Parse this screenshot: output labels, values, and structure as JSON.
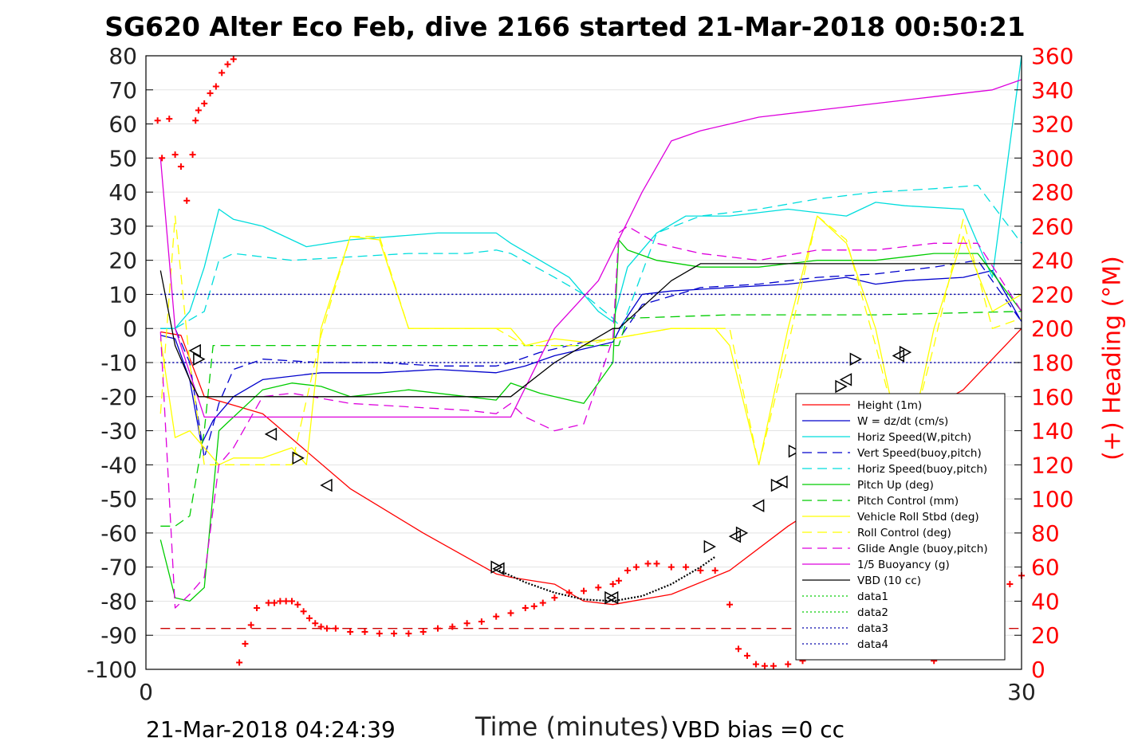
{
  "chart_data": {
    "type": "line",
    "title": "SG620 Alter Eco Feb, dive 2166 started 21-Mar-2018 00:50:21",
    "xlabel": "Time (minutes)",
    "ylabel": "",
    "y2label": "(+) Heading (°M)",
    "xlim": [
      0,
      30
    ],
    "ylim": [
      -100,
      80
    ],
    "y2lim": [
      0,
      360
    ],
    "x_ticks": [
      "0",
      "30"
    ],
    "y_ticks": [
      "80",
      "70",
      "60",
      "50",
      "40",
      "30",
      "20",
      "10",
      "0",
      "-10",
      "-20",
      "-30",
      "-40",
      "-50",
      "-60",
      "-70",
      "-80",
      "-90",
      "-100"
    ],
    "y2_ticks": [
      "360",
      "340",
      "320",
      "300",
      "280",
      "260",
      "240",
      "220",
      "200",
      "180",
      "160",
      "140",
      "120",
      "100",
      "80",
      "60",
      "40",
      "20",
      "0"
    ],
    "grid": "horizontal",
    "legend_position": "lower-right",
    "footer_left": "21-Mar-2018 04:24:39",
    "footer_right": "VBD bias =0 cc",
    "reference_lines": [
      {
        "name": "data4",
        "y": 10,
        "color": "#0000aa",
        "style": "dotted"
      },
      {
        "name": "data3",
        "y": -10,
        "color": "#0000aa",
        "style": "dotted"
      },
      {
        "name": "heading-reference",
        "y": -88,
        "color": "#cc0000",
        "style": "dashed"
      }
    ],
    "series": [
      {
        "name": "Height (1m)",
        "color": "#ff0000",
        "style": "solid",
        "x": [
          0.5,
          1.2,
          2.0,
          4.0,
          7.0,
          9.5,
          12.0,
          12.5,
          14.0,
          15.0,
          16.0,
          18.0,
          20.0,
          22.0,
          24.0,
          25.0,
          26.0,
          28.0,
          29.0,
          30.0
        ],
        "y": [
          -1,
          -2,
          -20,
          -25,
          -47,
          -60,
          -72,
          -73,
          -75,
          -80,
          -81,
          -78,
          -71,
          -58,
          -47,
          -33,
          -28,
          -18,
          -9,
          0
        ]
      },
      {
        "name": "W = dz/dt (cm/s)",
        "color": "#0000cc",
        "style": "solid",
        "x": [
          0.5,
          1.0,
          1.5,
          1.9,
          2.3,
          3.0,
          4.0,
          6.0,
          8.0,
          10.0,
          12.0,
          12.5,
          13.0,
          14.0,
          15.0,
          16.0,
          16.3,
          17.0,
          18.0,
          20.0,
          22.0,
          24.0,
          25.0,
          26.0,
          28.0,
          29.0,
          30.0
        ],
        "y": [
          -2,
          -3,
          -15,
          -34,
          -27,
          -20,
          -15,
          -13,
          -13,
          -12,
          -13,
          -12,
          -11,
          -8,
          -6,
          -4,
          1,
          10,
          11,
          12,
          13,
          15,
          13,
          14,
          15,
          17,
          2
        ]
      },
      {
        "name": "Horiz Speed(W,pitch)",
        "color": "#00dddd",
        "style": "solid",
        "x": [
          0.5,
          1.0,
          1.5,
          2.0,
          2.5,
          3.0,
          4.0,
          5.5,
          7.0,
          8.5,
          10.0,
          12.0,
          12.5,
          13.5,
          14.5,
          15.5,
          16.0,
          16.5,
          17.5,
          18.5,
          20.0,
          22.0,
          24.0,
          25.0,
          26.0,
          28.0,
          29.0,
          30.0
        ],
        "y": [
          0,
          0,
          5,
          18,
          35,
          32,
          30,
          24,
          26,
          27,
          28,
          28,
          25,
          20,
          15,
          5,
          2,
          18,
          28,
          33,
          33,
          35,
          33,
          37,
          36,
          35,
          15,
          80
        ]
      },
      {
        "name": "Vert Speed(buoy,pitch)",
        "color": "#0000cc",
        "style": "dashed",
        "x": [
          0.5,
          1.0,
          1.5,
          2.0,
          2.5,
          3.0,
          4.0,
          6.0,
          8.0,
          10.0,
          12.0,
          12.5,
          13.5,
          15.0,
          16.0,
          16.3,
          17.0,
          19.0,
          21.0,
          23.0,
          25.0,
          27.0,
          28.5,
          30.0
        ],
        "y": [
          0,
          0,
          -10,
          -38,
          -22,
          -12,
          -9,
          -10,
          -10,
          -11,
          -11,
          -10,
          -7,
          -4,
          -3,
          -2,
          7,
          12,
          13,
          15,
          16,
          18,
          20,
          2
        ]
      },
      {
        "name": "Horiz Speed(buoy,pitch)",
        "color": "#00dddd",
        "style": "dashed",
        "x": [
          0.5,
          1.0,
          2.0,
          2.5,
          3.0,
          5.0,
          7.0,
          9.0,
          11.0,
          12.0,
          12.5,
          14.0,
          15.0,
          16.0,
          16.3,
          17.5,
          19.0,
          21.0,
          23.0,
          25.0,
          27.0,
          28.5,
          30.0
        ],
        "y": [
          0,
          0,
          5,
          20,
          22,
          20,
          21,
          22,
          22,
          23,
          22,
          15,
          10,
          3,
          0,
          28,
          33,
          35,
          38,
          40,
          41,
          42,
          25
        ]
      },
      {
        "name": "Pitch Up (deg)",
        "color": "#00cc00",
        "style": "solid",
        "x": [
          0.5,
          1.0,
          1.5,
          2.0,
          2.5,
          3.0,
          4.0,
          5.0,
          6.0,
          7.0,
          9.0,
          11.0,
          12.0,
          12.5,
          13.5,
          15.0,
          16.0,
          16.2,
          16.5,
          17.5,
          19.0,
          21.0,
          23.0,
          25.0,
          27.0,
          28.5,
          30.0
        ],
        "y": [
          -62,
          -79,
          -80,
          -76,
          -30,
          -26,
          -18,
          -16,
          -17,
          -20,
          -18,
          -20,
          -21,
          -16,
          -19,
          -22,
          -10,
          26,
          23,
          20,
          18,
          18,
          20,
          20,
          22,
          22,
          5
        ]
      },
      {
        "name": "Pitch Control (mm)",
        "color": "#00cc00",
        "style": "dashed",
        "x": [
          0.5,
          1.0,
          1.5,
          2.0,
          2.3,
          3.0,
          8.0,
          12.0,
          12.5,
          15.0,
          16.2,
          16.5,
          20.0,
          25.0,
          30.0
        ],
        "y": [
          -58,
          -58,
          -55,
          -30,
          -5,
          -5,
          -5,
          -5,
          -5,
          -5,
          -5,
          3,
          4,
          4,
          5
        ]
      },
      {
        "name": "Vehicle Roll Stbd (deg)",
        "color": "#ffff00",
        "style": "solid",
        "x": [
          0.5,
          1.0,
          1.5,
          2.0,
          2.5,
          3.0,
          4.0,
          5.0,
          5.5,
          6.0,
          7.0,
          8.0,
          9.0,
          10.0,
          11.0,
          12.0,
          12.5,
          13.0,
          14.0,
          15.0,
          16.0,
          18.0,
          19.5,
          20.0,
          21.0,
          22.0,
          23.0,
          24.0,
          25.0,
          26.0,
          27.0,
          28.0,
          29.0,
          30.0
        ],
        "y": [
          -3,
          -32,
          -30,
          -35,
          -40,
          -38,
          -38,
          -35,
          -40,
          0,
          27,
          26,
          0,
          0,
          0,
          0,
          0,
          -5,
          -3,
          -4,
          -3,
          0,
          0,
          -5,
          -40,
          0,
          33,
          25,
          0,
          -40,
          0,
          27,
          5,
          10
        ]
      },
      {
        "name": "Roll Control (deg)",
        "color": "#ffff00",
        "style": "dashed",
        "x": [
          0.5,
          1.0,
          1.5,
          2.0,
          3.0,
          5.0,
          6.0,
          7.0,
          8.0,
          9.0,
          12.0,
          13.0,
          15.0,
          16.0,
          18.0,
          20.0,
          21.0,
          22.0,
          23.0,
          24.0,
          25.0,
          26.0,
          27.0,
          28.0,
          29.0,
          30.0
        ],
        "y": [
          -25,
          33,
          -10,
          -40,
          -40,
          -40,
          -2,
          27,
          27,
          0,
          0,
          -5,
          -5,
          -3,
          0,
          0,
          -40,
          -5,
          33,
          26,
          -5,
          -38,
          -5,
          32,
          0,
          3
        ]
      },
      {
        "name": "Glide Angle (buoy,pitch)",
        "color": "#dd00dd",
        "style": "dashed",
        "x": [
          0.5,
          1.0,
          1.5,
          2.0,
          2.5,
          3.0,
          4.0,
          5.0,
          7.0,
          9.0,
          11.0,
          12.0,
          12.5,
          13.0,
          14.0,
          15.0,
          16.0,
          16.2,
          16.5,
          17.5,
          19.0,
          21.0,
          23.0,
          25.0,
          27.0,
          28.5,
          30.0
        ],
        "y": [
          -1,
          -82,
          -78,
          -73,
          -40,
          -35,
          -20,
          -19,
          -22,
          -23,
          -24,
          -25,
          -22,
          -26,
          -30,
          -28,
          -3,
          28,
          30,
          25,
          22,
          20,
          23,
          23,
          25,
          25,
          5
        ]
      },
      {
        "name": "1/5 Buoyancy (g)",
        "color": "#dd00dd",
        "style": "solid",
        "x": [
          0.5,
          1.0,
          2.0,
          2.5,
          3.0,
          5.0,
          8.0,
          10.0,
          12.0,
          12.5,
          14.0,
          15.5,
          17.0,
          18.0,
          19.0,
          20.0,
          21.0,
          23.0,
          25.0,
          27.0,
          29.0,
          30.0
        ],
        "y": [
          50,
          0,
          -26,
          -26,
          -26,
          -26,
          -26,
          -26,
          -26,
          -26,
          0,
          14,
          40,
          55,
          58,
          60,
          62,
          64,
          66,
          68,
          70,
          73
        ]
      },
      {
        "name": "VBD (10 cc)",
        "color": "#000000",
        "style": "solid",
        "x": [
          0.5,
          1.0,
          1.5,
          1.8,
          2.0,
          2.5,
          3.0,
          6.0,
          10.0,
          12.5,
          14.0,
          15.0,
          16.0,
          16.2,
          18.0,
          19.0,
          21.0,
          25.0,
          30.0
        ],
        "y": [
          17,
          -5,
          -15,
          -20,
          -20,
          -20,
          -20,
          -20,
          -20,
          -20,
          -10,
          -5,
          0,
          0,
          14,
          19,
          19,
          19,
          19
        ]
      },
      {
        "name": "data1",
        "color": "#00cc00",
        "style": "dotted",
        "x": [],
        "y": []
      },
      {
        "name": "data2",
        "color": "#00cc00",
        "style": "dotted",
        "x": [],
        "y": []
      },
      {
        "name": "data3",
        "color": "#0000aa",
        "style": "dotted",
        "x": [
          0.5,
          30.0
        ],
        "y": [
          -10,
          -10
        ]
      },
      {
        "name": "data4",
        "color": "#0000aa",
        "style": "dotted",
        "x": [
          0.5,
          30.0
        ],
        "y": [
          10,
          10
        ]
      }
    ],
    "heading_series": {
      "axis": "y2",
      "color": "#ff0000",
      "marker": "+",
      "x": [
        0.4,
        0.55,
        0.8,
        1.0,
        1.2,
        1.4,
        1.6,
        1.7,
        1.8,
        2.0,
        2.2,
        2.4,
        2.6,
        2.8,
        3.0,
        3.2,
        3.4,
        3.6,
        3.8,
        4.2,
        4.4,
        4.6,
        4.8,
        5.0,
        5.2,
        5.4,
        5.6,
        5.8,
        6.0,
        6.2,
        6.5,
        7.0,
        7.5,
        8.0,
        8.5,
        9.0,
        9.5,
        10.0,
        10.5,
        11.0,
        11.5,
        12.0,
        12.5,
        13.0,
        13.3,
        13.6,
        14.0,
        14.5,
        15.0,
        15.5,
        16.0,
        16.2,
        16.5,
        16.8,
        17.2,
        17.5,
        18.0,
        18.5,
        19.0,
        19.5,
        20.0,
        20.3,
        20.6,
        20.9,
        21.2,
        21.5,
        22.0,
        22.5,
        23.0,
        23.3,
        23.6,
        24.0,
        24.3,
        24.6,
        25.0,
        25.3,
        25.6,
        26.0,
        26.3,
        26.6,
        27.0,
        27.3,
        27.6,
        28.0,
        28.3,
        28.6,
        29.0,
        29.3,
        29.6,
        30.0
      ],
      "y": [
        322,
        300,
        323,
        302,
        295,
        275,
        302,
        322,
        328,
        332,
        338,
        342,
        350,
        355,
        358,
        4,
        15,
        26,
        36,
        39,
        39,
        40,
        40,
        40,
        38,
        34,
        30,
        27,
        25,
        24,
        24,
        22,
        22,
        21,
        21,
        21,
        22,
        24,
        25,
        27,
        28,
        31,
        33,
        36,
        37,
        39,
        42,
        45,
        46,
        48,
        50,
        52,
        58,
        60,
        62,
        62,
        60,
        60,
        58,
        58,
        38,
        12,
        8,
        3,
        2,
        2,
        3,
        5,
        8,
        20,
        30,
        45,
        50,
        55,
        58,
        60,
        62,
        48,
        35,
        18,
        5,
        8,
        12,
        18,
        30,
        40,
        45,
        45,
        50,
        55
      ]
    },
    "triangle_markers": {
      "color": "#000000",
      "x": [
        1.7,
        1.8,
        4.3,
        5.2,
        6.2,
        12.0,
        12.1,
        15.9,
        16.0,
        19.3,
        20.2,
        20.4,
        21.0,
        21.6,
        21.8,
        22.2,
        22.5,
        23.2,
        23.3,
        23.8,
        24.0,
        24.3,
        25.8,
        26.0
      ],
      "y": [
        -6.5,
        -9,
        -31,
        -38,
        -46,
        -70,
        -70.5,
        -79,
        -79,
        -64,
        -61,
        -60,
        -52,
        -46,
        -45,
        -36,
        -34.5,
        -28,
        -27,
        -17,
        -15,
        -9,
        -8,
        -7
      ]
    },
    "dotted_fit": {
      "color": "#000000",
      "x": [
        12.1,
        13.0,
        14.0,
        15.0,
        16.0,
        17.0,
        18.0,
        19.0,
        19.5
      ],
      "y": [
        -71,
        -74.5,
        -77.5,
        -79.5,
        -80,
        -78.5,
        -75,
        -70,
        -67
      ]
    }
  }
}
